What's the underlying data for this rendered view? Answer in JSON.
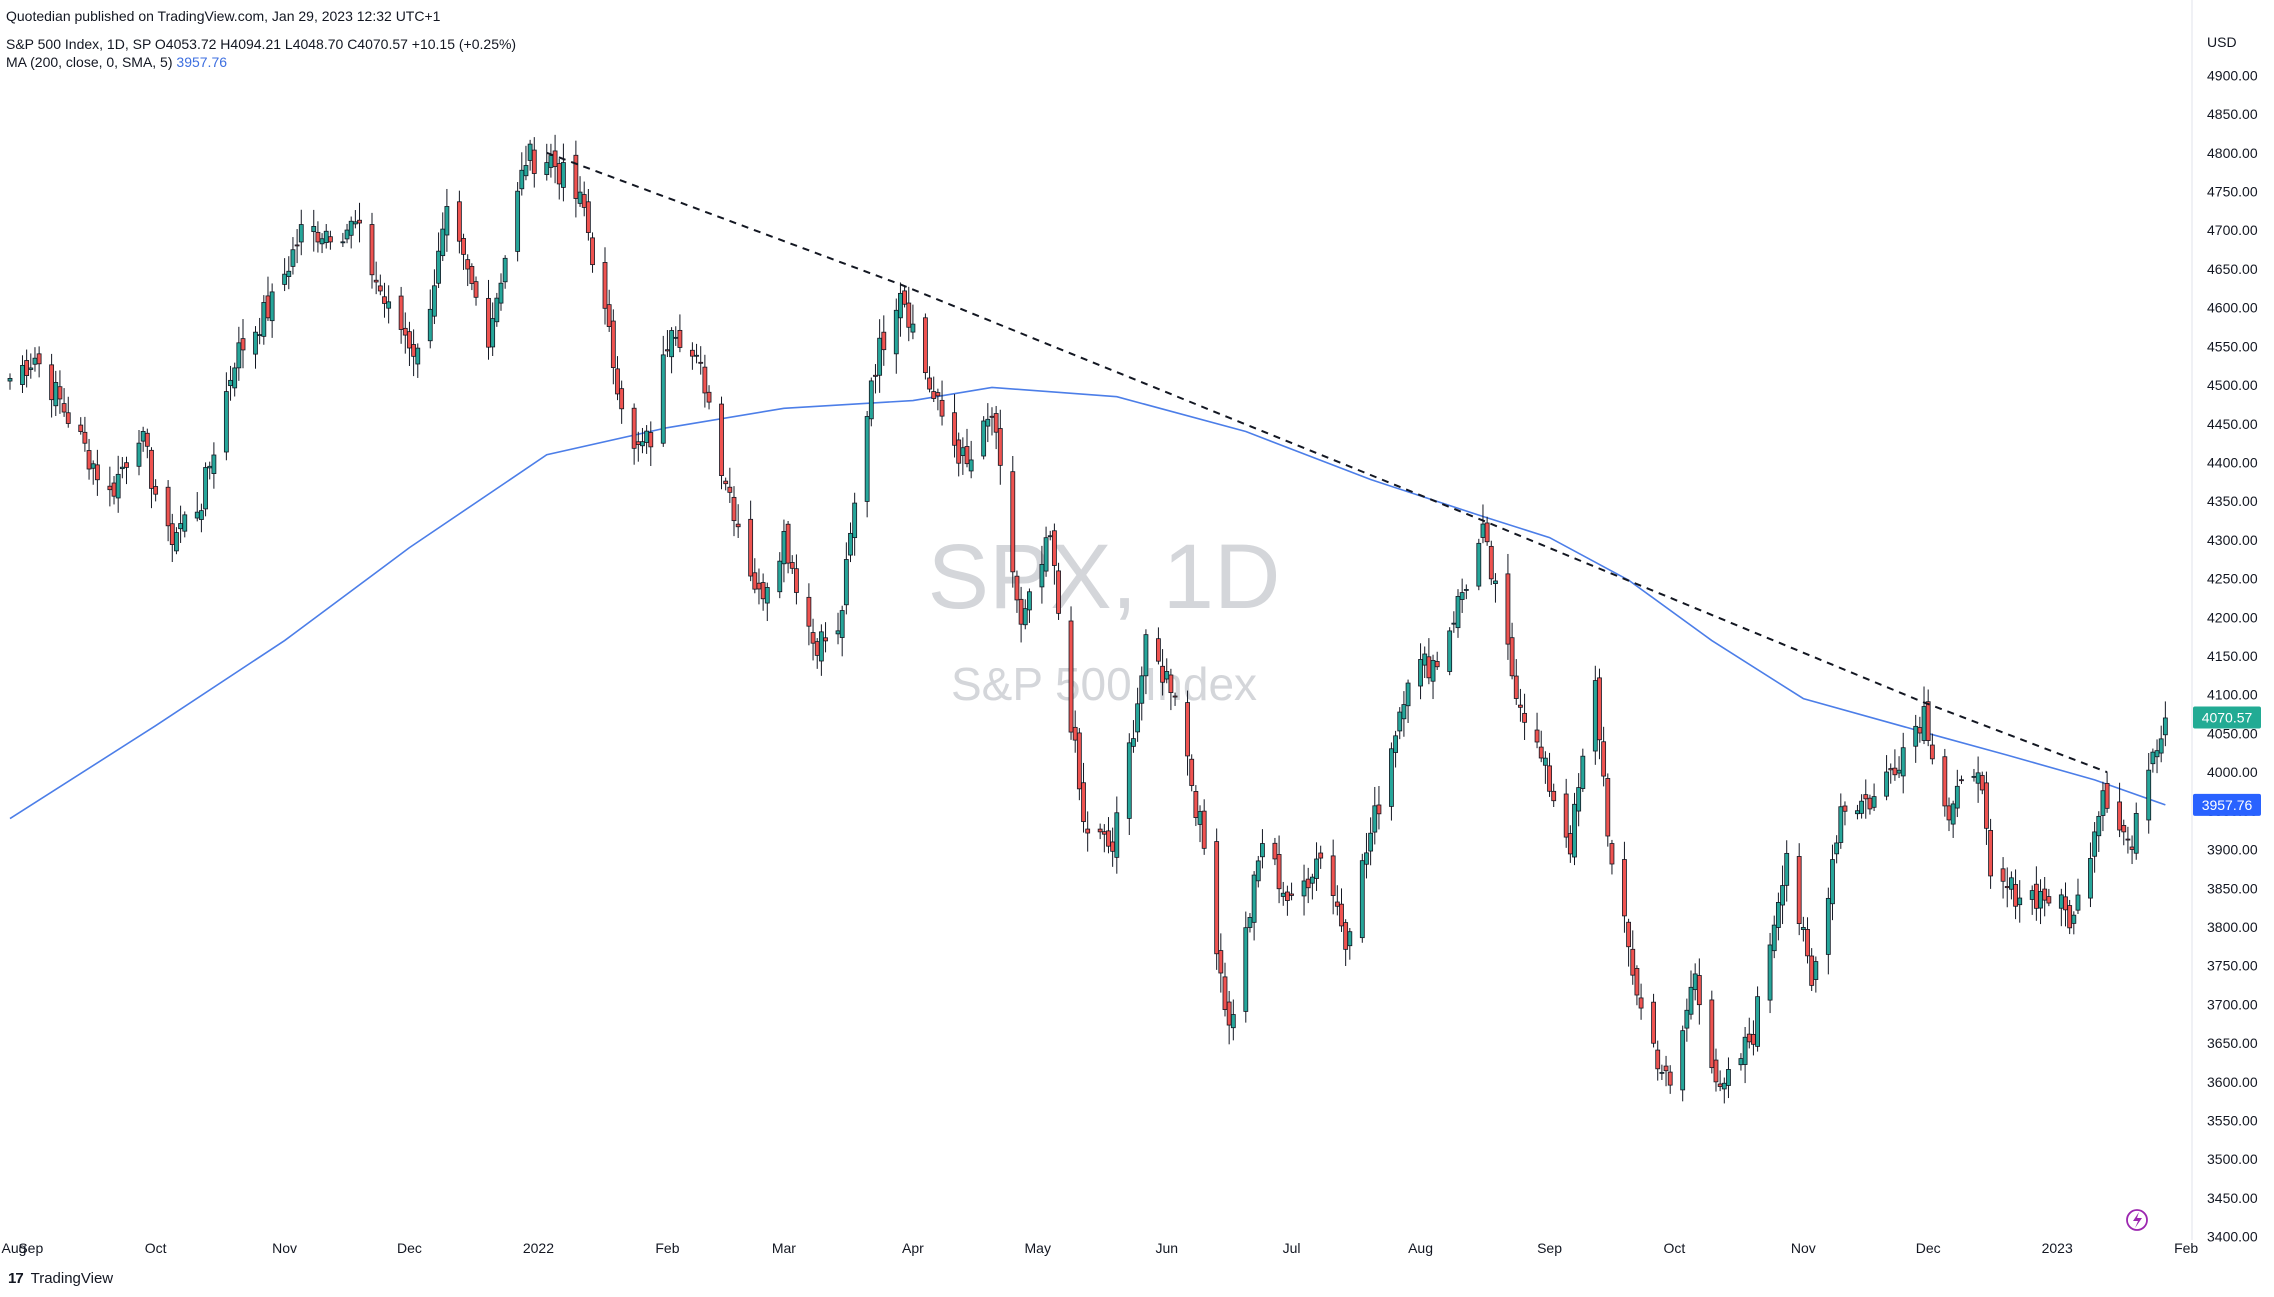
{
  "header": {
    "published": "Quotedian published on TradingView.com, Jan 29, 2023 12:32 UTC+1",
    "symbol_line": "S&P 500 Index, 1D, SP  O4053.72  H4094.21  L4048.70  C4070.57  +10.15 (+0.25%)",
    "ma_label": "MA (200, close, 0, SMA, 5)",
    "ma_value": "3957.76"
  },
  "footer": {
    "brand": "TradingView",
    "logo": "17"
  },
  "colors": {
    "up": "#26a69a",
    "down": "#ef5350",
    "wick": "#131722",
    "ma": "#4c7ee8",
    "price_badge": "#22ab94",
    "ma_badge": "#2962ff",
    "grid": "#ffffff"
  },
  "chart_data": {
    "type": "candlestick",
    "title": "S&P 500 Index, 1D, SP",
    "watermark": {
      "symbol": "SPX, 1D",
      "name": "S&P 500 Index"
    },
    "currency": "USD",
    "ylim": [
      3380,
      4990
    ],
    "y_ticks": [
      4900,
      4850,
      4800,
      4750,
      4700,
      4650,
      4600,
      4550,
      4500,
      4450,
      4400,
      4350,
      4300,
      4250,
      4200,
      4150,
      4100,
      4050,
      4000,
      3950,
      3900,
      3850,
      3800,
      3750,
      3700,
      3650,
      3600,
      3550,
      3500,
      3450,
      3400
    ],
    "x_labels": [
      "Aug",
      "Sep",
      "Oct",
      "Nov",
      "Dec",
      "2022",
      "Feb",
      "Mar",
      "Apr",
      "May",
      "Jun",
      "Jul",
      "Aug",
      "Sep",
      "Oct",
      "Nov",
      "Dec",
      "2023",
      "Feb"
    ],
    "x_range": [
      "2021-08-27",
      "2023-01-31"
    ],
    "last_price": {
      "label": "4070.57",
      "value": 4070.57
    },
    "ma_last": {
      "label": "3957.76",
      "value": 3957.76
    },
    "series": [
      {
        "name": "SPX",
        "kind": "ohlc-approx",
        "closes": [
          [
            "2021-08-27",
            4509
          ],
          [
            "2021-09-02",
            4537
          ],
          [
            "2021-09-10",
            4459
          ],
          [
            "2021-09-20",
            4358
          ],
          [
            "2021-09-27",
            4443
          ],
          [
            "2021-10-04",
            4300
          ],
          [
            "2021-10-12",
            4351
          ],
          [
            "2021-10-20",
            4536
          ],
          [
            "2021-10-29",
            4605
          ],
          [
            "2021-11-05",
            4697
          ],
          [
            "2021-11-18",
            4705
          ],
          [
            "2021-11-26",
            4594
          ],
          [
            "2021-11-30",
            4567
          ],
          [
            "2021-12-03",
            4538
          ],
          [
            "2021-12-10",
            4712
          ],
          [
            "2021-12-20",
            4568
          ],
          [
            "2021-12-29",
            4793
          ],
          [
            "2022-01-04",
            4793
          ],
          [
            "2022-01-12",
            4726
          ],
          [
            "2022-01-19",
            4532
          ],
          [
            "2022-01-24",
            4410
          ],
          [
            "2022-01-28",
            4431
          ],
          [
            "2022-02-02",
            4589
          ],
          [
            "2022-02-10",
            4504
          ],
          [
            "2022-02-14",
            4401
          ],
          [
            "2022-02-23",
            4225
          ],
          [
            "2022-03-01",
            4306
          ],
          [
            "2022-03-08",
            4170
          ],
          [
            "2022-03-14",
            4173
          ],
          [
            "2022-03-22",
            4511
          ],
          [
            "2022-03-29",
            4631
          ],
          [
            "2022-04-06",
            4481
          ],
          [
            "2022-04-14",
            4392
          ],
          [
            "2022-04-20",
            4460
          ],
          [
            "2022-04-27",
            4183
          ],
          [
            "2022-05-04",
            4300
          ],
          [
            "2022-05-12",
            3930
          ],
          [
            "2022-05-19",
            3900
          ],
          [
            "2022-05-27",
            4158
          ],
          [
            "2022-06-03",
            4109
          ],
          [
            "2022-06-10",
            3901
          ],
          [
            "2022-06-16",
            3667
          ],
          [
            "2022-06-24",
            3912
          ],
          [
            "2022-07-01",
            3825
          ],
          [
            "2022-07-08",
            3899
          ],
          [
            "2022-07-14",
            3790
          ],
          [
            "2022-07-22",
            3962
          ],
          [
            "2022-07-29",
            4130
          ],
          [
            "2022-08-05",
            4145
          ],
          [
            "2022-08-16",
            4305
          ],
          [
            "2022-08-23",
            4128
          ],
          [
            "2022-08-29",
            4030
          ],
          [
            "2022-09-06",
            3908
          ],
          [
            "2022-09-12",
            4110
          ],
          [
            "2022-09-16",
            3873
          ],
          [
            "2022-09-23",
            3693
          ],
          [
            "2022-09-30",
            3586
          ],
          [
            "2022-10-06",
            3744
          ],
          [
            "2022-10-12",
            3577
          ],
          [
            "2022-10-20",
            3665
          ],
          [
            "2022-10-28",
            3901
          ],
          [
            "2022-11-03",
            3720
          ],
          [
            "2022-11-10",
            3956
          ],
          [
            "2022-11-18",
            3965
          ],
          [
            "2022-11-30",
            4080
          ],
          [
            "2022-12-06",
            3941
          ],
          [
            "2022-12-13",
            4019
          ],
          [
            "2022-12-16",
            3852
          ],
          [
            "2022-12-23",
            3845
          ],
          [
            "2022-12-30",
            3839
          ],
          [
            "2023-01-05",
            3808
          ],
          [
            "2023-01-12",
            3983
          ],
          [
            "2023-01-19",
            3899
          ],
          [
            "2023-01-23",
            4019
          ],
          [
            "2023-01-27",
            4070
          ]
        ]
      },
      {
        "name": "MA (200, close, 0, SMA, 5)",
        "kind": "line",
        "points": [
          [
            "2021-08-27",
            3940
          ],
          [
            "2021-10-01",
            4060
          ],
          [
            "2021-11-01",
            4170
          ],
          [
            "2021-12-01",
            4290
          ],
          [
            "2022-01-03",
            4410
          ],
          [
            "2022-02-01",
            4445
          ],
          [
            "2022-03-01",
            4470
          ],
          [
            "2022-04-01",
            4480
          ],
          [
            "2022-04-20",
            4497
          ],
          [
            "2022-05-20",
            4485
          ],
          [
            "2022-06-20",
            4440
          ],
          [
            "2022-07-20",
            4378
          ],
          [
            "2022-08-15",
            4332
          ],
          [
            "2022-09-01",
            4303
          ],
          [
            "2022-09-20",
            4248
          ],
          [
            "2022-10-10",
            4170
          ],
          [
            "2022-11-01",
            4095
          ],
          [
            "2022-12-01",
            4050
          ],
          [
            "2022-12-20",
            4022
          ],
          [
            "2023-01-10",
            3990
          ],
          [
            "2023-01-27",
            3957.76
          ]
        ]
      },
      {
        "name": "trendline",
        "kind": "dashed-line",
        "points": [
          [
            "2022-01-03",
            4800
          ],
          [
            "2022-03-29",
            4630
          ],
          [
            "2022-08-16",
            4325
          ],
          [
            "2022-11-30",
            4090
          ],
          [
            "2023-01-13",
            4000
          ]
        ]
      }
    ]
  }
}
